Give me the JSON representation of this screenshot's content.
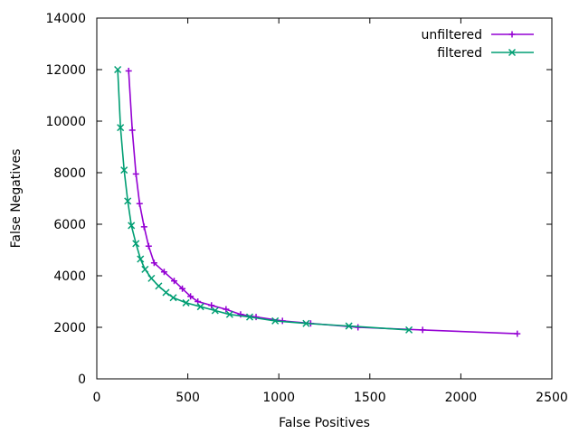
{
  "chart_data": {
    "type": "line",
    "title": "",
    "xlabel": "False Positives",
    "ylabel": "False Negatives",
    "xlim": [
      0,
      2500
    ],
    "ylim": [
      0,
      14000
    ],
    "xticks": [
      0,
      500,
      1000,
      1500,
      2000,
      2500
    ],
    "yticks": [
      0,
      2000,
      4000,
      6000,
      8000,
      10000,
      12000,
      14000
    ],
    "grid": false,
    "legend_position": "top-right",
    "series": [
      {
        "name": "unfiltered",
        "color": "#9400d3",
        "marker": "plus",
        "points": [
          [
            175,
            11950
          ],
          [
            195,
            9650
          ],
          [
            215,
            7950
          ],
          [
            235,
            6800
          ],
          [
            260,
            5900
          ],
          [
            285,
            5150
          ],
          [
            315,
            4500
          ],
          [
            370,
            4150
          ],
          [
            425,
            3800
          ],
          [
            470,
            3500
          ],
          [
            515,
            3200
          ],
          [
            555,
            3000
          ],
          [
            630,
            2850
          ],
          [
            710,
            2700
          ],
          [
            790,
            2500
          ],
          [
            875,
            2400
          ],
          [
            1020,
            2250
          ],
          [
            1175,
            2150
          ],
          [
            1435,
            2000
          ],
          [
            1790,
            1900
          ],
          [
            2310,
            1750
          ]
        ]
      },
      {
        "name": "filtered",
        "color": "#009e73",
        "marker": "cross",
        "points": [
          [
            115,
            12000
          ],
          [
            130,
            9750
          ],
          [
            150,
            8100
          ],
          [
            170,
            6900
          ],
          [
            190,
            5950
          ],
          [
            215,
            5250
          ],
          [
            240,
            4650
          ],
          [
            265,
            4250
          ],
          [
            300,
            3900
          ],
          [
            340,
            3600
          ],
          [
            380,
            3350
          ],
          [
            420,
            3150
          ],
          [
            490,
            2950
          ],
          [
            570,
            2800
          ],
          [
            650,
            2650
          ],
          [
            730,
            2500
          ],
          [
            840,
            2400
          ],
          [
            980,
            2250
          ],
          [
            1150,
            2150
          ],
          [
            1385,
            2050
          ],
          [
            1715,
            1900
          ]
        ]
      }
    ]
  }
}
